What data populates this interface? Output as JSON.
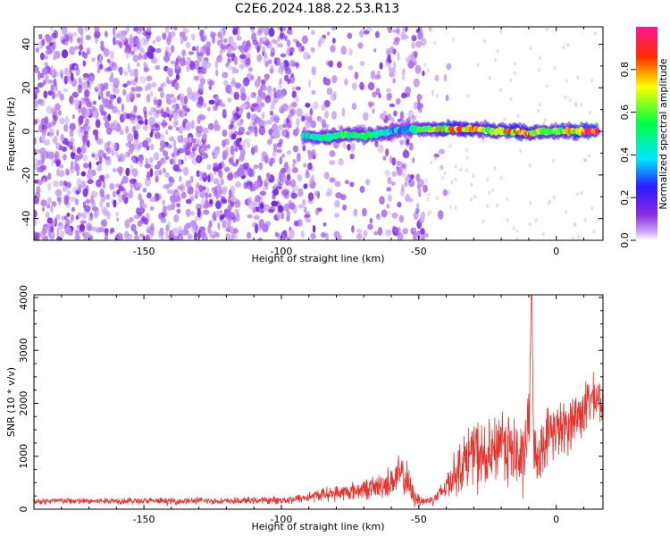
{
  "title": "C2E6.2024.188.22.53.R13",
  "panels": {
    "spectrogram": {
      "xlabel": "Height of straight line (km)",
      "ylabel": "Frequency (Hz)",
      "x_ticks": [
        "-150",
        "-100",
        "-50",
        "0"
      ],
      "y_ticks": [
        "40",
        "20",
        "0",
        "-20",
        "-40"
      ],
      "colorbar": {
        "label": "Normalized spectral amplitude",
        "ticks": [
          "0.0",
          "0.2",
          "0.4",
          "0.6",
          "0.8"
        ]
      }
    },
    "snr": {
      "xlabel": "Height of straight line (km)",
      "ylabel": "SNR (10 * v/v)",
      "x_ticks": [
        "-150",
        "-100",
        "-50",
        "0"
      ],
      "y_ticks": [
        "0",
        "1000",
        "2000",
        "3000",
        "4000"
      ]
    }
  },
  "colors": {
    "snr_line": "#e8322e",
    "scatter_purple": "#7a1ff0",
    "colormap": [
      "#ffffff",
      "#8a2be2",
      "#1a1aff",
      "#00e5ff",
      "#00ff40",
      "#ffff00",
      "#ff0000",
      "#ff1493"
    ]
  },
  "chart_data": [
    {
      "type": "heatmap",
      "title": "C2E6.2024.188.22.53.R13",
      "xlabel": "Height of straight line (km)",
      "ylabel": "Frequency (Hz)",
      "xlim": [
        -190,
        17
      ],
      "ylim": [
        -50,
        48
      ],
      "colorbar_range": [
        0,
        1
      ],
      "grid": false,
      "description_values": {
        "ridge": {
          "x": [
            -92,
            -85,
            -80,
            -75,
            -70,
            -65,
            -60,
            -55,
            -50,
            -45,
            -40,
            -35,
            -30,
            -25,
            -20,
            -15,
            -10,
            -5,
            0,
            5,
            10,
            15
          ],
          "freq": [
            -2,
            -3,
            -2,
            -1.5,
            -2,
            -1,
            0,
            1,
            1,
            1,
            1,
            1,
            1,
            0.5,
            0,
            0,
            -1,
            0,
            0,
            0,
            0,
            0
          ],
          "amplitude": [
            0.45,
            0.5,
            0.55,
            0.5,
            0.55,
            0.5,
            0.4,
            0.35,
            0.5,
            0.65,
            0.75,
            0.8,
            0.75,
            0.6,
            0.7,
            0.8,
            0.85,
            0.55,
            0.6,
            0.7,
            0.9,
            0.9
          ]
        },
        "noise_region_x": [
          -190,
          -48
        ],
        "noise_amplitude": 0.1
      }
    },
    {
      "type": "line",
      "xlabel": "Height of straight line (km)",
      "ylabel": "SNR (10 * v/v)",
      "xlim": [
        -190,
        17
      ],
      "ylim": [
        0,
        4050
      ],
      "grid": false,
      "series": [
        {
          "x": [
            -190,
            -180,
            -170,
            -160,
            -150,
            -140,
            -130,
            -120,
            -110,
            -100,
            -95,
            -90,
            -85,
            -80,
            -75,
            -70,
            -65,
            -60,
            -57,
            -55,
            -52,
            -50,
            -48,
            -45,
            -42,
            -40,
            -38,
            -35,
            -32,
            -30,
            -28,
            -25,
            -22,
            -20,
            -18,
            -15,
            -12,
            -10,
            -9,
            -8,
            -6,
            -4,
            -2,
            0,
            3,
            6,
            9,
            12,
            15,
            17
          ],
          "values": [
            150,
            155,
            150,
            160,
            155,
            150,
            160,
            150,
            165,
            170,
            190,
            230,
            280,
            300,
            330,
            380,
            420,
            520,
            650,
            600,
            250,
            180,
            150,
            180,
            300,
            450,
            600,
            800,
            1000,
            1100,
            1000,
            900,
            1100,
            1400,
            1200,
            1000,
            900,
            1600,
            4000,
            900,
            1100,
            1300,
            1500,
            1500,
            1500,
            1700,
            1800,
            2050,
            2100,
            2000
          ],
          "noise_amplitude": [
            60,
            60,
            60,
            60,
            60,
            60,
            60,
            60,
            60,
            70,
            80,
            100,
            120,
            140,
            160,
            180,
            220,
            300,
            350,
            400,
            200,
            120,
            80,
            100,
            180,
            250,
            350,
            450,
            550,
            600,
            650,
            650,
            600,
            650,
            700,
            700,
            650,
            700,
            0,
            600,
            500,
            500,
            500,
            500,
            500,
            500,
            500,
            450,
            400,
            350
          ]
        }
      ]
    }
  ]
}
